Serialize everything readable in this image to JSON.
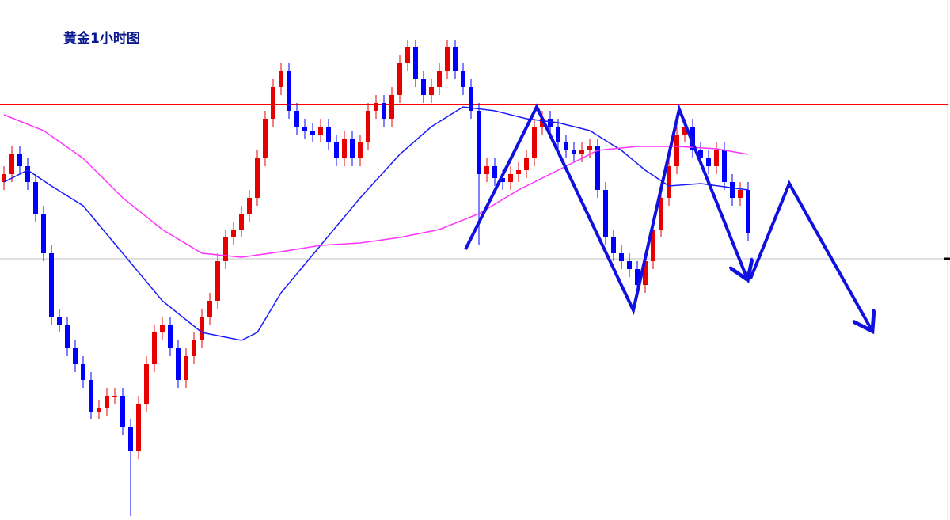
{
  "chart_data": {
    "type": "candlestick",
    "title": "黄金1小时图",
    "categories": [
      null,
      null,
      null,
      null,
      null,
      null,
      null,
      null,
      null,
      null,
      null,
      null,
      null,
      null,
      null,
      null,
      null,
      null,
      null,
      null,
      null,
      null,
      null,
      null,
      null,
      null,
      null,
      null,
      null,
      null,
      null,
      null,
      null,
      null,
      null,
      null,
      null,
      null,
      null,
      null,
      null,
      null,
      null,
      null,
      null,
      null,
      null,
      null,
      null,
      null,
      null,
      null,
      null,
      null,
      null,
      null,
      null,
      null,
      null,
      null,
      null,
      null,
      null,
      null,
      null,
      null,
      null,
      null,
      null,
      null,
      null,
      null,
      null,
      null,
      null,
      null,
      null,
      null,
      null,
      null,
      null,
      null,
      null,
      null,
      null,
      null,
      null,
      null,
      null,
      null,
      null,
      null,
      null,
      null,
      null
    ],
    "open": [
      427,
      437,
      462,
      447,
      427,
      387,
      337,
      257,
      247,
      217,
      197,
      177,
      137,
      142,
      157,
      157,
      117,
      87,
      147,
      197,
      237,
      247,
      217,
      177,
      207,
      227,
      257,
      277,
      327,
      357,
      367,
      387,
      407,
      457,
      507,
      547,
      567,
      517,
      497,
      492,
      487,
      497,
      477,
      457,
      482,
      457,
      477,
      517,
      527,
      507,
      537,
      577,
      597,
      557,
      537,
      547,
      567,
      597,
      567,
      547,
      517,
      437,
      447,
      432,
      427,
      437,
      442,
      457,
      497,
      507,
      497,
      477,
      467,
      462,
      467,
      472,
      417,
      357,
      337,
      327,
      317,
      297,
      327,
      367,
      407,
      447,
      487,
      497,
      467,
      457,
      447,
      467,
      427,
      407,
      417
    ],
    "high": [
      447,
      472,
      472,
      457,
      437,
      397,
      347,
      267,
      257,
      227,
      207,
      187,
      152,
      167,
      167,
      167,
      127,
      157,
      207,
      247,
      257,
      257,
      227,
      217,
      237,
      267,
      287,
      337,
      367,
      377,
      397,
      417,
      467,
      517,
      557,
      577,
      577,
      527,
      507,
      502,
      507,
      507,
      487,
      492,
      492,
      487,
      527,
      537,
      537,
      547,
      587,
      607,
      607,
      567,
      557,
      577,
      607,
      607,
      577,
      557,
      527,
      457,
      457,
      442,
      447,
      452,
      467,
      507,
      517,
      517,
      507,
      487,
      477,
      477,
      482,
      482,
      427,
      367,
      347,
      337,
      327,
      337,
      377,
      417,
      457,
      497,
      507,
      507,
      477,
      467,
      477,
      477,
      437,
      427,
      427
    ],
    "low": [
      417,
      427,
      437,
      417,
      377,
      327,
      247,
      237,
      207,
      187,
      167,
      127,
      127,
      132,
      147,
      107,
      5,
      77,
      137,
      187,
      227,
      207,
      167,
      167,
      197,
      217,
      247,
      267,
      317,
      347,
      357,
      377,
      397,
      447,
      497,
      537,
      507,
      487,
      482,
      477,
      477,
      467,
      447,
      447,
      447,
      447,
      467,
      507,
      497,
      497,
      527,
      567,
      547,
      527,
      527,
      537,
      557,
      557,
      537,
      507,
      347,
      427,
      422,
      417,
      417,
      427,
      432,
      447,
      487,
      487,
      467,
      457,
      452,
      452,
      457,
      407,
      347,
      327,
      317,
      307,
      287,
      287,
      317,
      357,
      397,
      437,
      477,
      457,
      447,
      437,
      437,
      417,
      397,
      397,
      352
    ],
    "close": [
      437,
      462,
      447,
      427,
      387,
      337,
      257,
      247,
      217,
      197,
      177,
      137,
      142,
      157,
      157,
      117,
      87,
      147,
      197,
      237,
      247,
      217,
      177,
      207,
      227,
      257,
      277,
      327,
      357,
      367,
      387,
      407,
      457,
      507,
      547,
      567,
      517,
      497,
      492,
      487,
      497,
      477,
      457,
      482,
      457,
      477,
      517,
      527,
      507,
      537,
      577,
      597,
      557,
      537,
      547,
      567,
      597,
      567,
      547,
      517,
      437,
      447,
      432,
      427,
      437,
      442,
      457,
      497,
      507,
      497,
      477,
      467,
      462,
      467,
      472,
      417,
      357,
      337,
      327,
      317,
      297,
      327,
      367,
      407,
      447,
      487,
      497,
      467,
      457,
      447,
      467,
      427,
      407,
      417,
      362
    ],
    "up_color": "#e60000",
    "down_color": "#0000ff",
    "moving_averages": [
      {
        "color": "#1a1aff",
        "x": [
          0,
          3,
          6,
          10,
          15,
          20,
          25,
          30,
          32,
          35,
          40,
          45,
          50,
          54,
          58,
          62,
          66,
          70,
          74,
          78,
          81,
          84,
          88,
          94
        ],
        "values": [
          427,
          442,
          422,
          397,
          337,
          277,
          237,
          227,
          237,
          287,
          347,
          407,
          462,
          497,
          522,
          517,
          507,
          502,
          492,
          467,
          442,
          422,
          425,
          417
        ]
      },
      {
        "color": "#ff33ff",
        "x": [
          0,
          5,
          10,
          15,
          20,
          25,
          30,
          35,
          40,
          45,
          50,
          55,
          60,
          65,
          70,
          75,
          80,
          85,
          90,
          94
        ],
        "values": [
          512,
          492,
          457,
          407,
          367,
          337,
          332,
          339,
          347,
          350,
          357,
          367,
          387,
          417,
          442,
          467,
          472,
          472,
          469,
          462
        ]
      }
    ],
    "hlines": [
      {
        "value": 525,
        "color": "#ff0000"
      },
      {
        "value": 330,
        "color": "#c0c0c0"
      }
    ],
    "ylim": [
      0,
      657
    ]
  }
}
